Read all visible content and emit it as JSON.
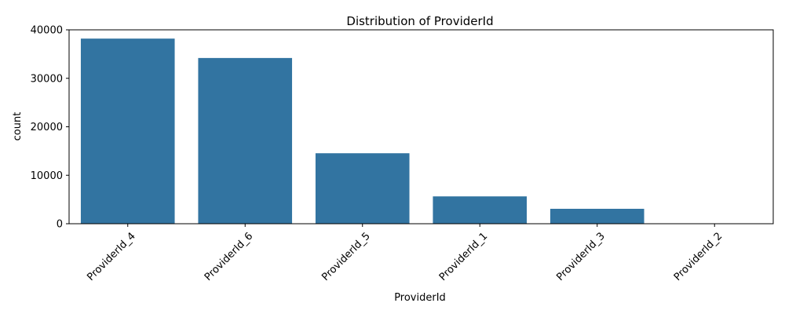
{
  "chart_data": {
    "type": "bar",
    "title": "Distribution of ProviderId",
    "xlabel": "ProviderId",
    "ylabel": "count",
    "categories": [
      "ProviderId_4",
      "ProviderId_6",
      "ProviderId_5",
      "ProviderId_1",
      "ProviderId_3",
      "ProviderId_2"
    ],
    "values": [
      38190,
      34190,
      14540,
      5640,
      3080,
      20
    ],
    "ylim": [
      0,
      40000
    ],
    "yticks": [
      0,
      10000,
      20000,
      30000,
      40000
    ],
    "bar_color": "#3274a1",
    "grid": false,
    "x_tick_rotation_deg": 45
  }
}
